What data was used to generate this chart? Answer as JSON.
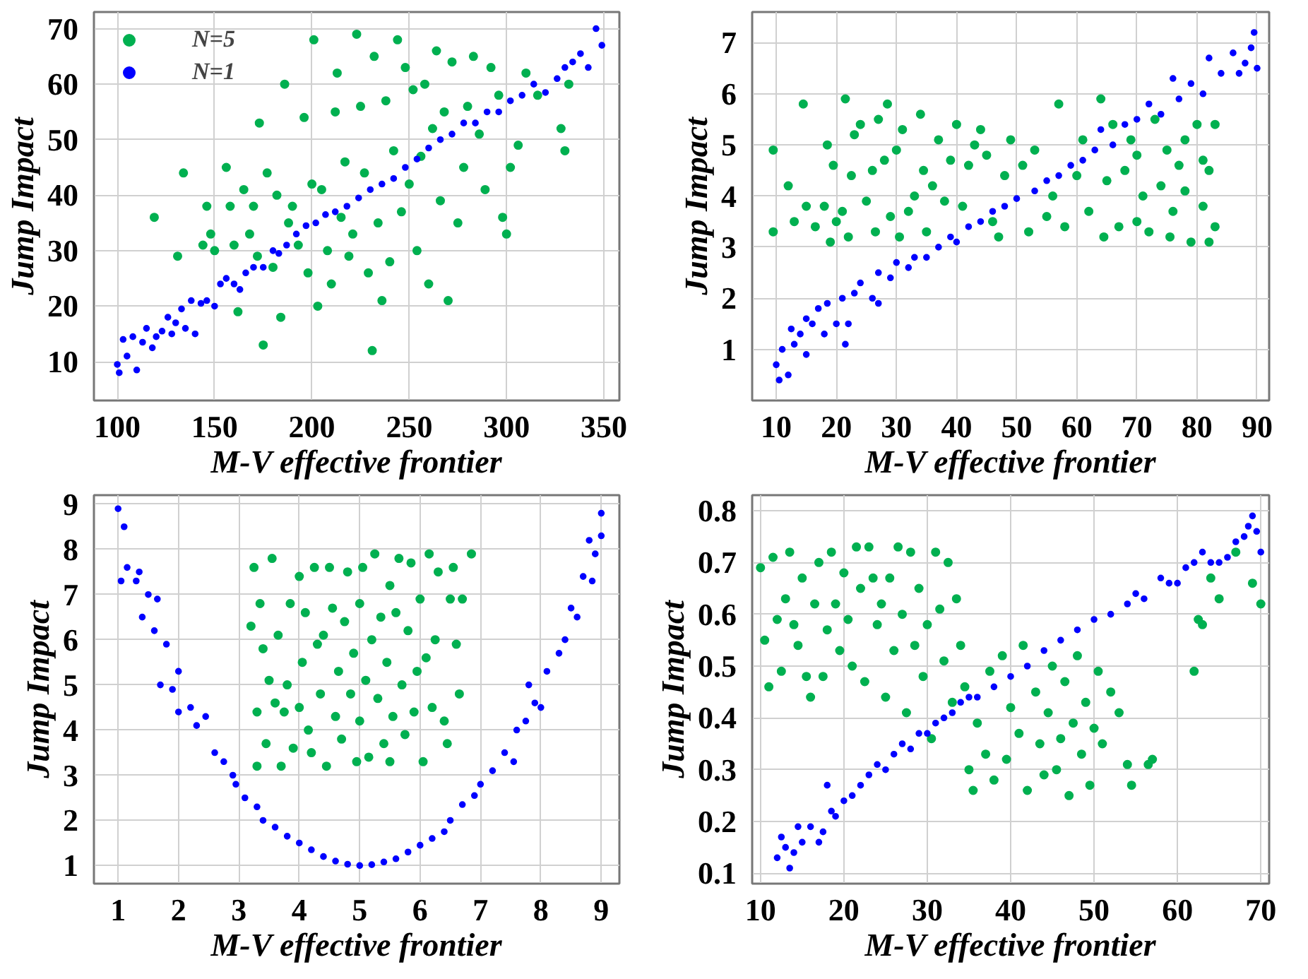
{
  "chart_data": [
    {
      "type": "scatter",
      "xlabel": "M-V effective frontier",
      "ylabel": "Jump Impact",
      "xlim": [
        88,
        358
      ],
      "ylim": [
        3,
        73
      ],
      "xticks": [
        100,
        150,
        200,
        250,
        300,
        350
      ],
      "yticks": [
        10,
        20,
        30,
        40,
        50,
        60,
        70
      ],
      "grid": true,
      "marker": "circle",
      "legend": "top left",
      "series": [
        {
          "name": "N=5",
          "color": "#00b050",
          "x": [
            119,
            131,
            134,
            144,
            146,
            148,
            150,
            156,
            158,
            160,
            162,
            165,
            168,
            170,
            172,
            173,
            175,
            177,
            180,
            182,
            184,
            186,
            188,
            190,
            193,
            196,
            198,
            200,
            201,
            203,
            205,
            208,
            210,
            212,
            213,
            215,
            217,
            219,
            221,
            223,
            225,
            227,
            229,
            231,
            232,
            234,
            236,
            238,
            240,
            242,
            244,
            246,
            248,
            250,
            252,
            254,
            256,
            258,
            260,
            262,
            264,
            266,
            268,
            270,
            272,
            275,
            278,
            280,
            283,
            286,
            289,
            292,
            296,
            298,
            300,
            302,
            306,
            310,
            316,
            328,
            330,
            332
          ],
          "values": [
            36,
            29,
            44,
            31,
            38,
            33,
            30,
            45,
            38,
            31,
            19,
            41,
            33,
            38,
            29,
            53,
            13,
            44,
            27,
            40,
            18,
            60,
            35,
            38,
            31,
            54,
            26,
            42,
            68,
            20,
            41,
            30,
            24,
            55,
            62,
            36,
            46,
            29,
            33,
            69,
            56,
            44,
            26,
            12,
            65,
            35,
            21,
            57,
            28,
            48,
            68,
            37,
            63,
            42,
            59,
            30,
            47,
            60,
            24,
            52,
            66,
            39,
            55,
            21,
            64,
            35,
            45,
            56,
            65,
            51,
            41,
            63,
            58,
            36,
            33,
            45,
            49,
            62,
            58,
            52,
            48,
            60
          ]
        },
        {
          "name": "N=1",
          "color": "#0000ff",
          "x": [
            100,
            101,
            103,
            105,
            108,
            110,
            113,
            115,
            118,
            120,
            123,
            126,
            128,
            130,
            133,
            135,
            138,
            140,
            143,
            146,
            150,
            153,
            156,
            160,
            163,
            166,
            170,
            175,
            180,
            183,
            187,
            192,
            197,
            202,
            207,
            212,
            218,
            224,
            230,
            236,
            242,
            248,
            254,
            260,
            266,
            272,
            278,
            284,
            290,
            296,
            302,
            308,
            314,
            320,
            326,
            330,
            334,
            338,
            342,
            346,
            349
          ],
          "values": [
            9.5,
            8,
            14,
            11,
            14.5,
            8.5,
            13.5,
            16,
            12.5,
            14.5,
            15.5,
            18,
            15,
            17,
            19.5,
            16,
            21,
            15,
            20.5,
            21,
            20,
            24,
            25,
            24,
            23,
            26,
            27,
            27,
            30,
            29.5,
            31,
            33,
            34.5,
            35,
            36.5,
            37,
            38,
            39.5,
            41,
            42,
            43,
            45,
            46.5,
            48.5,
            50,
            51,
            53,
            53,
            55,
            55,
            57,
            58,
            60,
            58.5,
            61,
            63,
            64,
            65.5,
            63,
            70,
            67
          ]
        }
      ]
    },
    {
      "type": "scatter",
      "xlabel": "M-V effective frontier",
      "ylabel": "Jump Impact",
      "xlim": [
        6,
        92
      ],
      "ylim": [
        0,
        7.6
      ],
      "xticks": [
        10,
        20,
        30,
        40,
        50,
        60,
        70,
        80,
        90
      ],
      "yticks": [
        1,
        2,
        3,
        4,
        5,
        6,
        7
      ],
      "grid": true,
      "marker": "circle",
      "series": [
        {
          "color": "#00b050",
          "x": [
            9.5,
            9.5,
            12,
            13,
            14.5,
            15,
            16.5,
            18,
            18.5,
            19,
            19.5,
            20,
            21,
            21.5,
            22,
            22.5,
            23,
            24,
            25,
            26,
            26.5,
            27,
            28,
            28.5,
            29,
            30,
            30.5,
            31,
            32,
            33,
            34,
            34.5,
            35,
            36,
            37,
            38,
            39,
            40,
            41,
            42,
            43,
            44,
            45,
            46,
            47,
            48,
            49,
            51,
            52,
            53,
            55,
            56,
            57,
            58,
            60,
            61,
            62,
            64,
            64.5,
            65,
            66,
            67,
            68,
            69,
            70,
            70,
            71,
            72,
            73,
            74,
            75,
            75.5,
            76,
            77,
            78,
            78,
            79,
            80,
            81,
            81,
            82,
            82,
            83,
            83
          ],
          "values": [
            4.9,
            3.3,
            4.2,
            3.5,
            5.8,
            3.8,
            3.4,
            3.8,
            5.0,
            3.1,
            4.6,
            3.5,
            3.7,
            5.9,
            3.2,
            4.4,
            5.2,
            5.4,
            3.9,
            4.5,
            3.3,
            5.5,
            4.7,
            5.8,
            3.6,
            4.9,
            3.2,
            5.3,
            3.7,
            4.0,
            5.6,
            4.5,
            3.3,
            4.2,
            5.1,
            3.9,
            4.7,
            5.4,
            3.8,
            4.6,
            5.0,
            5.3,
            4.8,
            3.5,
            3.2,
            4.4,
            5.1,
            4.6,
            3.3,
            4.9,
            3.6,
            4.0,
            5.8,
            3.4,
            4.4,
            5.1,
            3.7,
            5.9,
            3.2,
            4.3,
            5.4,
            3.4,
            4.5,
            5.1,
            3.5,
            4.8,
            4.0,
            3.3,
            5.5,
            4.2,
            4.9,
            3.2,
            3.7,
            4.6,
            4.1,
            5.1,
            3.1,
            5.4,
            4.7,
            3.8,
            3.1,
            4.5,
            3.4,
            5.4
          ]
        },
        {
          "color": "#0000ff",
          "x": [
            10,
            10.5,
            11,
            12,
            12.5,
            13,
            14,
            15,
            15,
            16,
            17,
            18,
            18.5,
            20,
            21,
            21.5,
            22,
            23,
            24,
            26,
            27,
            27,
            29,
            30,
            32,
            33,
            35,
            37,
            39,
            40,
            42,
            44,
            46,
            48,
            50,
            53,
            55,
            57,
            59,
            61,
            63,
            64,
            66,
            68,
            70,
            72,
            74,
            76,
            77,
            79,
            81,
            82,
            84,
            86,
            87,
            88,
            89,
            89.5,
            90
          ],
          "values": [
            0.7,
            0.4,
            1.0,
            0.5,
            1.4,
            1.1,
            1.3,
            0.9,
            1.6,
            1.5,
            1.8,
            1.3,
            1.9,
            1.5,
            2.0,
            1.1,
            1.5,
            2.1,
            2.3,
            2.0,
            1.9,
            2.5,
            2.4,
            2.7,
            2.6,
            2.8,
            2.8,
            3.0,
            3.2,
            3.1,
            3.4,
            3.5,
            3.7,
            3.8,
            3.95,
            4.1,
            4.3,
            4.4,
            4.6,
            4.7,
            4.9,
            5.3,
            5.0,
            5.4,
            5.5,
            5.8,
            5.6,
            6.3,
            5.9,
            6.2,
            6.0,
            6.7,
            6.4,
            6.8,
            6.4,
            6.6,
            6.9,
            7.2,
            6.5
          ]
        }
      ]
    },
    {
      "type": "scatter",
      "xlabel": "M-V effective frontier",
      "ylabel": "Jump Impact",
      "xlim": [
        0.6,
        9.3
      ],
      "ylim": [
        0.6,
        9.2
      ],
      "xticks": [
        1,
        2,
        3,
        4,
        5,
        6,
        7,
        8,
        9
      ],
      "yticks": [
        1,
        2,
        3,
        4,
        5,
        6,
        7,
        8,
        9
      ],
      "grid": true,
      "marker": "circle",
      "series": [
        {
          "color": "#00b050",
          "x": [
            3.2,
            3.25,
            3.3,
            3.3,
            3.35,
            3.4,
            3.45,
            3.5,
            3.55,
            3.6,
            3.65,
            3.7,
            3.75,
            3.8,
            3.85,
            3.9,
            4.0,
            4.0,
            4.05,
            4.1,
            4.15,
            4.2,
            4.25,
            4.3,
            4.35,
            4.4,
            4.45,
            4.5,
            4.55,
            4.6,
            4.65,
            4.7,
            4.75,
            4.8,
            4.85,
            4.9,
            4.95,
            5.0,
            5.0,
            5.05,
            5.1,
            5.15,
            5.2,
            5.25,
            5.3,
            5.35,
            5.4,
            5.45,
            5.5,
            5.5,
            5.55,
            5.6,
            5.65,
            5.7,
            5.75,
            5.8,
            5.85,
            5.9,
            5.95,
            6.0,
            6.05,
            6.1,
            6.15,
            6.2,
            6.25,
            6.3,
            6.4,
            6.45,
            6.5,
            6.55,
            6.6,
            6.65,
            6.7,
            6.85
          ],
          "values": [
            6.3,
            7.6,
            4.4,
            3.2,
            6.8,
            5.8,
            3.7,
            5.1,
            7.8,
            4.6,
            6.1,
            3.2,
            4.4,
            5.0,
            6.8,
            3.6,
            4.5,
            7.4,
            5.5,
            6.6,
            4.0,
            3.5,
            7.6,
            5.9,
            4.8,
            6.1,
            3.2,
            7.6,
            6.7,
            4.3,
            5.3,
            3.8,
            6.4,
            7.5,
            4.8,
            5.7,
            3.3,
            6.8,
            4.2,
            7.6,
            5.1,
            3.4,
            6.0,
            7.9,
            4.7,
            6.5,
            3.7,
            5.5,
            7.2,
            3.3,
            4.3,
            6.6,
            7.8,
            5.0,
            3.9,
            6.2,
            7.7,
            4.4,
            5.3,
            6.9,
            3.3,
            5.6,
            7.9,
            4.5,
            6.0,
            7.5,
            4.2,
            3.7,
            6.9,
            7.6,
            5.9,
            4.8,
            6.9,
            7.9
          ]
        },
        {
          "color": "#0000ff",
          "x": [
            1,
            1.05,
            1.1,
            1.15,
            1.3,
            1.35,
            1.4,
            1.5,
            1.6,
            1.65,
            1.7,
            1.8,
            1.9,
            2.0,
            2.0,
            2.2,
            2.3,
            2.45,
            2.6,
            2.75,
            2.9,
            2.95,
            3.1,
            3.3,
            3.4,
            3.6,
            3.8,
            4.0,
            4.2,
            4.4,
            4.6,
            4.8,
            5.0,
            5.2,
            5.4,
            5.6,
            5.8,
            6.0,
            6.2,
            6.4,
            6.5,
            6.7,
            6.9,
            7.0,
            7.2,
            7.4,
            7.55,
            7.6,
            7.75,
            7.8,
            7.9,
            8.0,
            8.1,
            8.3,
            8.4,
            8.5,
            8.6,
            8.7,
            8.8,
            8.85,
            8.9,
            9.0,
            9.0
          ],
          "values": [
            8.9,
            7.3,
            8.5,
            7.6,
            7.3,
            7.5,
            6.5,
            7.0,
            6.2,
            6.9,
            5.0,
            5.9,
            4.9,
            5.3,
            4.4,
            4.5,
            4.1,
            4.3,
            3.5,
            3.3,
            3.0,
            2.8,
            2.5,
            2.3,
            2.0,
            1.85,
            1.65,
            1.5,
            1.35,
            1.2,
            1.1,
            1.03,
            1.0,
            1.02,
            1.08,
            1.15,
            1.3,
            1.45,
            1.6,
            1.75,
            2.0,
            2.35,
            2.55,
            2.8,
            3.1,
            3.5,
            3.3,
            4.0,
            4.2,
            5.0,
            4.6,
            4.5,
            5.3,
            5.7,
            6.0,
            6.7,
            6.5,
            7.4,
            8.2,
            7.3,
            7.9,
            8.3,
            8.8
          ]
        }
      ]
    },
    {
      "type": "scatter",
      "xlabel": "M-V effective frontier",
      "ylabel": "Jump Impact",
      "xlim": [
        9,
        71
      ],
      "ylim": [
        0.08,
        0.83
      ],
      "xticks": [
        10,
        20,
        30,
        40,
        50,
        60,
        70
      ],
      "yticks": [
        0.1,
        0.2,
        0.3,
        0.4,
        0.5,
        0.6,
        0.7,
        0.8
      ],
      "grid": true,
      "marker": "circle",
      "series": [
        {
          "color": "#00b050",
          "x": [
            10,
            10.5,
            11,
            11.5,
            12,
            12.5,
            13,
            13.5,
            14,
            14.5,
            15,
            15.5,
            16,
            16.5,
            17,
            17.5,
            18,
            18.5,
            19,
            19.5,
            20,
            20.5,
            21,
            21.5,
            22,
            22.5,
            23,
            23.5,
            24,
            24.5,
            25,
            25.5,
            26,
            26.5,
            27,
            27.5,
            28,
            28.5,
            29,
            29.5,
            30,
            30.5,
            31,
            31.5,
            32,
            32.5,
            33,
            33.5,
            34,
            34.5,
            35,
            35.5,
            36,
            37,
            37.5,
            38,
            39,
            39.5,
            40,
            41,
            41.5,
            42,
            43,
            43.5,
            44,
            44.5,
            45,
            45.5,
            46,
            46.5,
            47,
            47.5,
            48,
            48.5,
            49,
            49.5,
            50,
            50.5,
            51,
            52,
            53,
            54,
            54.5,
            56.5,
            57,
            62,
            62.5,
            63,
            64,
            65,
            67,
            69,
            70
          ],
          "values": [
            0.69,
            0.55,
            0.46,
            0.71,
            0.59,
            0.49,
            0.63,
            0.72,
            0.58,
            0.54,
            0.67,
            0.48,
            0.44,
            0.62,
            0.7,
            0.48,
            0.57,
            0.72,
            0.62,
            0.53,
            0.68,
            0.59,
            0.5,
            0.73,
            0.65,
            0.47,
            0.73,
            0.67,
            0.58,
            0.62,
            0.44,
            0.67,
            0.53,
            0.73,
            0.6,
            0.41,
            0.72,
            0.54,
            0.65,
            0.48,
            0.58,
            0.36,
            0.72,
            0.61,
            0.51,
            0.7,
            0.43,
            0.63,
            0.54,
            0.46,
            0.3,
            0.26,
            0.39,
            0.33,
            0.49,
            0.28,
            0.52,
            0.32,
            0.42,
            0.37,
            0.54,
            0.26,
            0.45,
            0.35,
            0.29,
            0.41,
            0.5,
            0.3,
            0.36,
            0.47,
            0.25,
            0.39,
            0.52,
            0.33,
            0.43,
            0.27,
            0.38,
            0.49,
            0.35,
            0.45,
            0.41,
            0.31,
            0.27,
            0.31,
            0.32,
            0.49,
            0.59,
            0.58,
            0.67,
            0.63,
            0.72,
            0.66,
            0.62
          ]
        },
        {
          "color": "#0000ff",
          "x": [
            12,
            12.5,
            13,
            13.5,
            14,
            14.5,
            15,
            16,
            17,
            17.5,
            18,
            18.5,
            19,
            20,
            21,
            22,
            23,
            24,
            25,
            26,
            27,
            28,
            29,
            30,
            31,
            32,
            33,
            34,
            35,
            36,
            38,
            40,
            42,
            44,
            46,
            48,
            50,
            52,
            54,
            55,
            56,
            58,
            59,
            60,
            61,
            62,
            63,
            64,
            65,
            66,
            67,
            68,
            68.5,
            69,
            69.5,
            70
          ],
          "values": [
            0.13,
            0.17,
            0.15,
            0.11,
            0.14,
            0.19,
            0.16,
            0.19,
            0.16,
            0.18,
            0.27,
            0.22,
            0.21,
            0.24,
            0.25,
            0.27,
            0.29,
            0.31,
            0.3,
            0.33,
            0.35,
            0.34,
            0.37,
            0.37,
            0.39,
            0.4,
            0.41,
            0.43,
            0.44,
            0.44,
            0.46,
            0.48,
            0.5,
            0.53,
            0.55,
            0.57,
            0.59,
            0.6,
            0.62,
            0.64,
            0.63,
            0.67,
            0.66,
            0.66,
            0.69,
            0.7,
            0.72,
            0.7,
            0.7,
            0.71,
            0.74,
            0.75,
            0.77,
            0.79,
            0.76,
            0.72
          ]
        }
      ]
    }
  ]
}
